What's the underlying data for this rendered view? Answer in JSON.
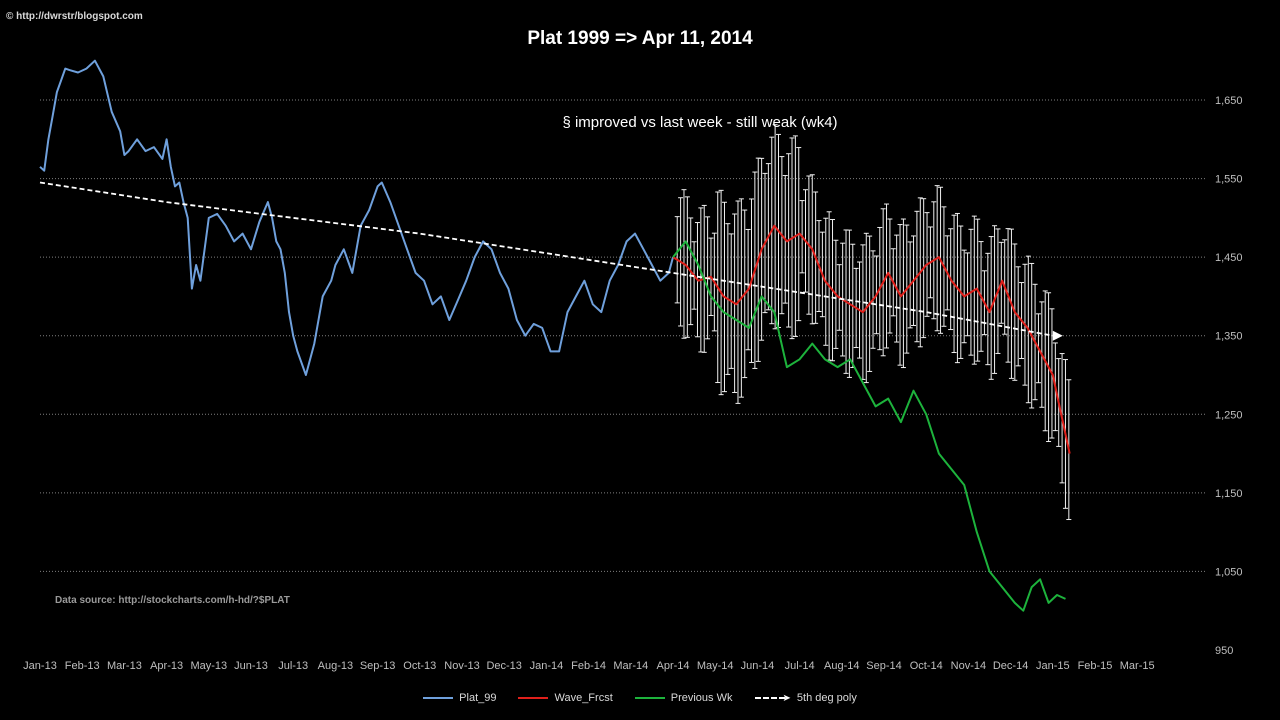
{
  "copyright": "© http://dwrstr/blogspot.com",
  "title": "Plat 1999 => Apr 11, 2014",
  "subtitle": "§ improved vs last week - still weak (wk4)",
  "source": "Data source:  http://stockcharts.com/h-hd/?$PLAT",
  "legend": {
    "items": [
      {
        "label": "Plat_99",
        "color": "#6fa0dc"
      },
      {
        "label": "Wave_Frcst",
        "color": "#e0201b"
      },
      {
        "label": "Previous Wk",
        "color": "#1db33c"
      },
      {
        "label": "5th deg poly",
        "color": "#ffffff"
      }
    ]
  },
  "chart_data": {
    "type": "line",
    "title": "Plat 1999 => Apr 11, 2014",
    "ylim": [
      950,
      1650
    ],
    "y_ticks": [
      "950",
      "1,050",
      "1,150",
      "1,250",
      "1,350",
      "1,450",
      "1,550",
      "1,650"
    ],
    "y_tick_values": [
      950,
      1050,
      1150,
      1250,
      1350,
      1450,
      1550,
      1650
    ],
    "x_ticks": [
      "Jan-13",
      "Feb-13",
      "Mar-13",
      "Apr-13",
      "May-13",
      "Jun-13",
      "Jul-13",
      "Aug-13",
      "Sep-13",
      "Oct-13",
      "Nov-13",
      "Dec-13",
      "Jan-14",
      "Feb-14",
      "Mar-14",
      "Apr-14",
      "May-14",
      "Jun-14",
      "Jul-14",
      "Aug-14",
      "Sep-14",
      "Oct-14",
      "Nov-14",
      "Dec-14",
      "Jan-15",
      "Feb-15",
      "Mar-15"
    ],
    "x_unit": "months since Jan-13",
    "grid": "horizontal dotted",
    "legend_position": "bottom",
    "series": [
      {
        "name": "Plat_99",
        "color": "#6fa0dc",
        "x": [
          0,
          0.1,
          0.2,
          0.3,
          0.4,
          0.5,
          0.6,
          0.7,
          0.9,
          1.1,
          1.3,
          1.5,
          1.7,
          1.9,
          2.0,
          2.1,
          2.3,
          2.5,
          2.7,
          2.9,
          3.0,
          3.1,
          3.2,
          3.3,
          3.4,
          3.5,
          3.6,
          3.7,
          3.8,
          3.9,
          4.0,
          4.2,
          4.4,
          4.6,
          4.8,
          5.0,
          5.2,
          5.4,
          5.5,
          5.6,
          5.7,
          5.8,
          5.9,
          6.0,
          6.1,
          6.3,
          6.5,
          6.7,
          6.9,
          7.0,
          7.2,
          7.4,
          7.6,
          7.8,
          8.0,
          8.1,
          8.3,
          8.5,
          8.7,
          8.9,
          9.1,
          9.3,
          9.5,
          9.7,
          9.9,
          10.1,
          10.3,
          10.5,
          10.7,
          10.9,
          11.1,
          11.3,
          11.5,
          11.7,
          11.9,
          12.1,
          12.3,
          12.5,
          12.7,
          12.9,
          13.1,
          13.3,
          13.5,
          13.7,
          13.9,
          14.1,
          14.3,
          14.5,
          14.7,
          14.9,
          15.0
        ],
        "y": [
          1565,
          1560,
          1600,
          1630,
          1660,
          1675,
          1690,
          1688,
          1685,
          1690,
          1700,
          1680,
          1635,
          1610,
          1580,
          1585,
          1600,
          1585,
          1590,
          1575,
          1600,
          1565,
          1540,
          1545,
          1520,
          1500,
          1410,
          1440,
          1420,
          1460,
          1500,
          1505,
          1490,
          1470,
          1480,
          1460,
          1495,
          1520,
          1500,
          1470,
          1460,
          1430,
          1380,
          1350,
          1330,
          1300,
          1340,
          1400,
          1420,
          1440,
          1460,
          1430,
          1490,
          1510,
          1540,
          1545,
          1520,
          1490,
          1460,
          1430,
          1420,
          1390,
          1400,
          1370,
          1395,
          1420,
          1450,
          1470,
          1460,
          1430,
          1410,
          1370,
          1350,
          1365,
          1360,
          1330,
          1330,
          1380,
          1400,
          1420,
          1390,
          1380,
          1420,
          1440,
          1470,
          1480,
          1460,
          1440,
          1420,
          1430,
          1450
        ]
      },
      {
        "name": "Wave_Frcst",
        "color": "#e0201b",
        "x": [
          15.0,
          15.3,
          15.6,
          15.9,
          16.2,
          16.5,
          16.8,
          17.1,
          17.4,
          17.7,
          18.0,
          18.3,
          18.6,
          18.9,
          19.2,
          19.5,
          19.8,
          20.1,
          20.4,
          20.7,
          21.0,
          21.3,
          21.6,
          21.9,
          22.2,
          22.5,
          22.8,
          23.1,
          23.4,
          23.7,
          24.0,
          24.2,
          24.4
        ],
        "y": [
          1450,
          1440,
          1420,
          1425,
          1400,
          1390,
          1410,
          1460,
          1490,
          1470,
          1480,
          1460,
          1420,
          1400,
          1390,
          1380,
          1400,
          1430,
          1400,
          1420,
          1440,
          1450,
          1420,
          1400,
          1410,
          1380,
          1420,
          1380,
          1360,
          1330,
          1300,
          1250,
          1200
        ]
      },
      {
        "name": "Previous Wk",
        "color": "#1db33c",
        "x": [
          15.0,
          15.3,
          15.6,
          15.9,
          16.2,
          16.5,
          16.8,
          17.1,
          17.4,
          17.7,
          18.0,
          18.3,
          18.6,
          18.9,
          19.2,
          19.5,
          19.8,
          20.1,
          20.4,
          20.7,
          21.0,
          21.3,
          21.6,
          21.9,
          22.2,
          22.5,
          22.8,
          23.1,
          23.3,
          23.5,
          23.7,
          23.9,
          24.1,
          24.3
        ],
        "y": [
          1450,
          1470,
          1440,
          1400,
          1380,
          1370,
          1360,
          1400,
          1380,
          1310,
          1320,
          1340,
          1320,
          1310,
          1320,
          1290,
          1260,
          1270,
          1240,
          1280,
          1250,
          1200,
          1180,
          1160,
          1100,
          1050,
          1030,
          1010,
          1000,
          1030,
          1040,
          1010,
          1020,
          1015
        ]
      },
      {
        "name": "5th deg poly",
        "color": "#ffffff",
        "x": [
          0,
          3,
          6,
          9,
          12,
          15,
          18,
          21,
          24
        ],
        "y": [
          1545,
          1520,
          1500,
          1480,
          1455,
          1430,
          1405,
          1380,
          1350
        ]
      }
    ]
  }
}
